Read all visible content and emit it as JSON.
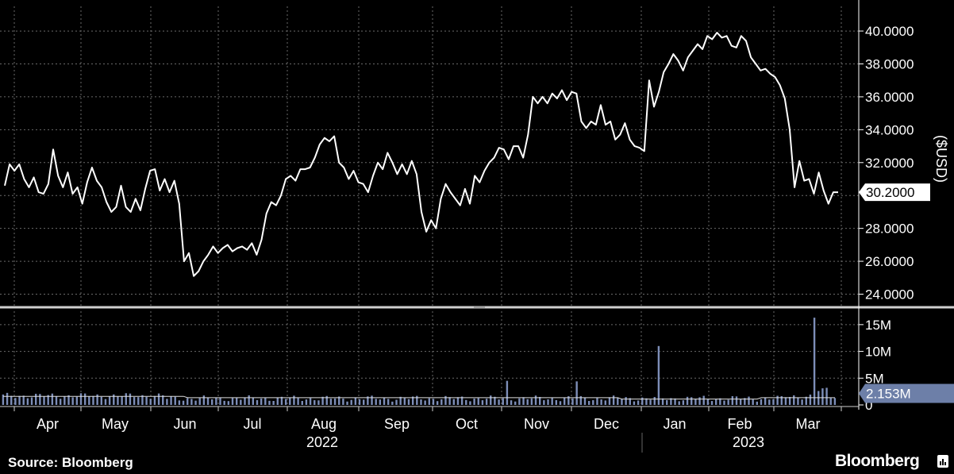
{
  "chart_data": [
    {
      "type": "line",
      "name": "price-panel",
      "ylabel": "($USD)",
      "ylim": [
        23.3,
        41.5
      ],
      "yticks": [
        "40.0000",
        "38.0000",
        "36.0000",
        "34.0000",
        "32.0000",
        "28.0000",
        "26.0000",
        "24.0000"
      ],
      "ytick_values": [
        40,
        38,
        36,
        34,
        32,
        28,
        26,
        24
      ],
      "last_value_label": "30.2000",
      "last_value": 30.2,
      "grid": true,
      "line_color": "#ffffff",
      "values": [
        30.6,
        31.9,
        31.5,
        31.9,
        31.0,
        30.5,
        31.1,
        30.2,
        30.1,
        30.7,
        32.8,
        31.2,
        30.5,
        31.4,
        30.1,
        30.5,
        29.5,
        30.8,
        31.7,
        30.9,
        30.5,
        29.6,
        29.0,
        29.3,
        30.6,
        29.3,
        29.0,
        29.8,
        29.1,
        30.4,
        31.5,
        31.6,
        30.3,
        31.0,
        30.2,
        30.9,
        29.5,
        26.0,
        26.5,
        25.1,
        25.4,
        26.0,
        26.4,
        26.9,
        26.5,
        26.8,
        27.0,
        26.6,
        26.8,
        26.9,
        26.7,
        27.1,
        26.4,
        27.3,
        28.9,
        29.6,
        29.4,
        30.0,
        31.0,
        31.2,
        30.9,
        31.6,
        31.6,
        31.7,
        32.3,
        33.1,
        33.5,
        33.3,
        33.6,
        32.0,
        31.7,
        31.0,
        31.5,
        30.8,
        30.7,
        30.2,
        31.2,
        32.0,
        31.6,
        32.6,
        32.0,
        31.3,
        31.9,
        31.3,
        32.1,
        31.3,
        29.0,
        27.8,
        28.5,
        28.0,
        29.8,
        30.7,
        30.2,
        29.8,
        29.4,
        30.4,
        29.5,
        31.2,
        30.8,
        31.5,
        32.0,
        32.3,
        32.9,
        32.8,
        32.2,
        33.0,
        33.0,
        32.3,
        33.7,
        36.0,
        35.6,
        36.0,
        35.6,
        36.2,
        35.9,
        36.4,
        35.8,
        36.3,
        36.2,
        34.5,
        34.1,
        34.5,
        34.3,
        35.5,
        34.3,
        34.5,
        33.4,
        33.7,
        34.4,
        33.4,
        33.0,
        32.9,
        32.7,
        37.0,
        35.4,
        36.3,
        37.5,
        38.0,
        38.6,
        38.2,
        37.6,
        38.4,
        38.8,
        39.2,
        38.9,
        39.7,
        39.5,
        39.9,
        39.6,
        39.7,
        39.1,
        39.0,
        39.7,
        39.4,
        38.4,
        38.0,
        37.6,
        37.7,
        37.4,
        37.2,
        36.7,
        35.9,
        34.0,
        30.5,
        32.1,
        30.9,
        31.0,
        30.1,
        31.4,
        30.3,
        29.5,
        30.2,
        30.2
      ]
    },
    {
      "type": "bar",
      "name": "volume-panel",
      "ylim": [
        0,
        17.5
      ],
      "yticks": [
        "15M",
        "10M",
        "5M",
        "0"
      ],
      "ytick_values": [
        15,
        10,
        5,
        0
      ],
      "last_value_label": "2.153M",
      "last_value": 2.153,
      "bar_color": "#7d8eb8",
      "avg_line_color": "#dddddd",
      "spikes": [
        {
          "index": 160,
          "value": 11.0
        },
        {
          "index": 198,
          "value": 16.3
        },
        {
          "index": 123,
          "value": 4.5
        },
        {
          "index": 140,
          "value": 4.4
        },
        {
          "index": 200,
          "value": 3.1
        },
        {
          "index": 201,
          "value": 3.2
        },
        {
          "index": 199,
          "value": 2.6
        }
      ]
    }
  ],
  "x_axis": {
    "months": [
      "Apr",
      "May",
      "Jun",
      "Jul",
      "Aug",
      "Sep",
      "Oct",
      "Nov",
      "Dec",
      "Jan",
      "Feb",
      "Mar"
    ],
    "years": [
      "2022",
      "2023"
    ]
  },
  "footer": {
    "source": "Source: Bloomberg",
    "brand": "Bloomberg"
  }
}
